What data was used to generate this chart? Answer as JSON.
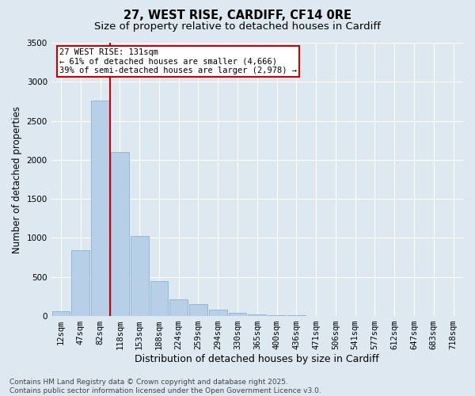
{
  "title_line1": "27, WEST RISE, CARDIFF, CF14 0RE",
  "title_line2": "Size of property relative to detached houses in Cardiff",
  "xlabel": "Distribution of detached houses by size in Cardiff",
  "ylabel": "Number of detached properties",
  "categories": [
    "12sqm",
    "47sqm",
    "82sqm",
    "118sqm",
    "153sqm",
    "188sqm",
    "224sqm",
    "259sqm",
    "294sqm",
    "330sqm",
    "365sqm",
    "400sqm",
    "436sqm",
    "471sqm",
    "506sqm",
    "541sqm",
    "577sqm",
    "612sqm",
    "647sqm",
    "683sqm",
    "718sqm"
  ],
  "values": [
    60,
    840,
    2760,
    2100,
    1030,
    450,
    210,
    150,
    80,
    40,
    20,
    10,
    8,
    5,
    3,
    2,
    1,
    1,
    1,
    0,
    0
  ],
  "bar_color": "#b8cfe8",
  "bar_edge_color": "#7aaad0",
  "vline_color": "#cc0000",
  "annotation_text": "27 WEST RISE: 131sqm\n← 61% of detached houses are smaller (4,666)\n39% of semi-detached houses are larger (2,978) →",
  "annotation_box_color": "#ffffff",
  "annotation_box_edge_color": "#cc0000",
  "ylim": [
    0,
    3500
  ],
  "yticks": [
    0,
    500,
    1000,
    1500,
    2000,
    2500,
    3000,
    3500
  ],
  "footer_text": "Contains HM Land Registry data © Crown copyright and database right 2025.\nContains public sector information licensed under the Open Government Licence v3.0.",
  "bg_color": "#dde8f0",
  "grid_color": "#ffffff",
  "title_fontsize": 10.5,
  "subtitle_fontsize": 9.5,
  "ylabel_fontsize": 8.5,
  "xlabel_fontsize": 9,
  "tick_fontsize": 7.5,
  "footer_fontsize": 6.5,
  "annot_fontsize": 7.5
}
